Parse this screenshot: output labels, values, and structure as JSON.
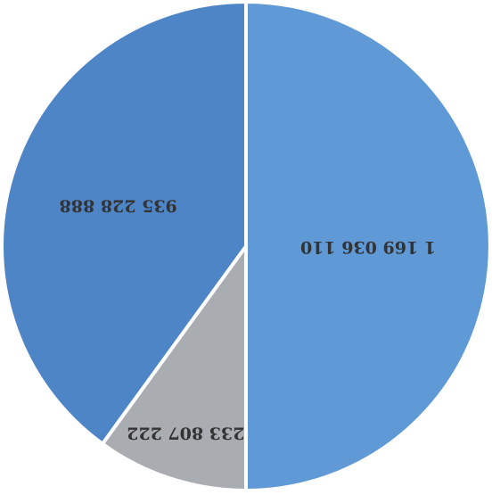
{
  "chart_data": {
    "type": "pie",
    "orientation": "rotated 180 degrees (upside-down)",
    "title": "",
    "values": [
      233807222,
      935228888,
      1169036110
    ],
    "data_labels": [
      "233 807 222",
      "935 228 888",
      "1 169 036 110"
    ],
    "colors": [
      "#a9acb0",
      "#4e85c7",
      "#5f99d6"
    ],
    "legend": "none"
  }
}
